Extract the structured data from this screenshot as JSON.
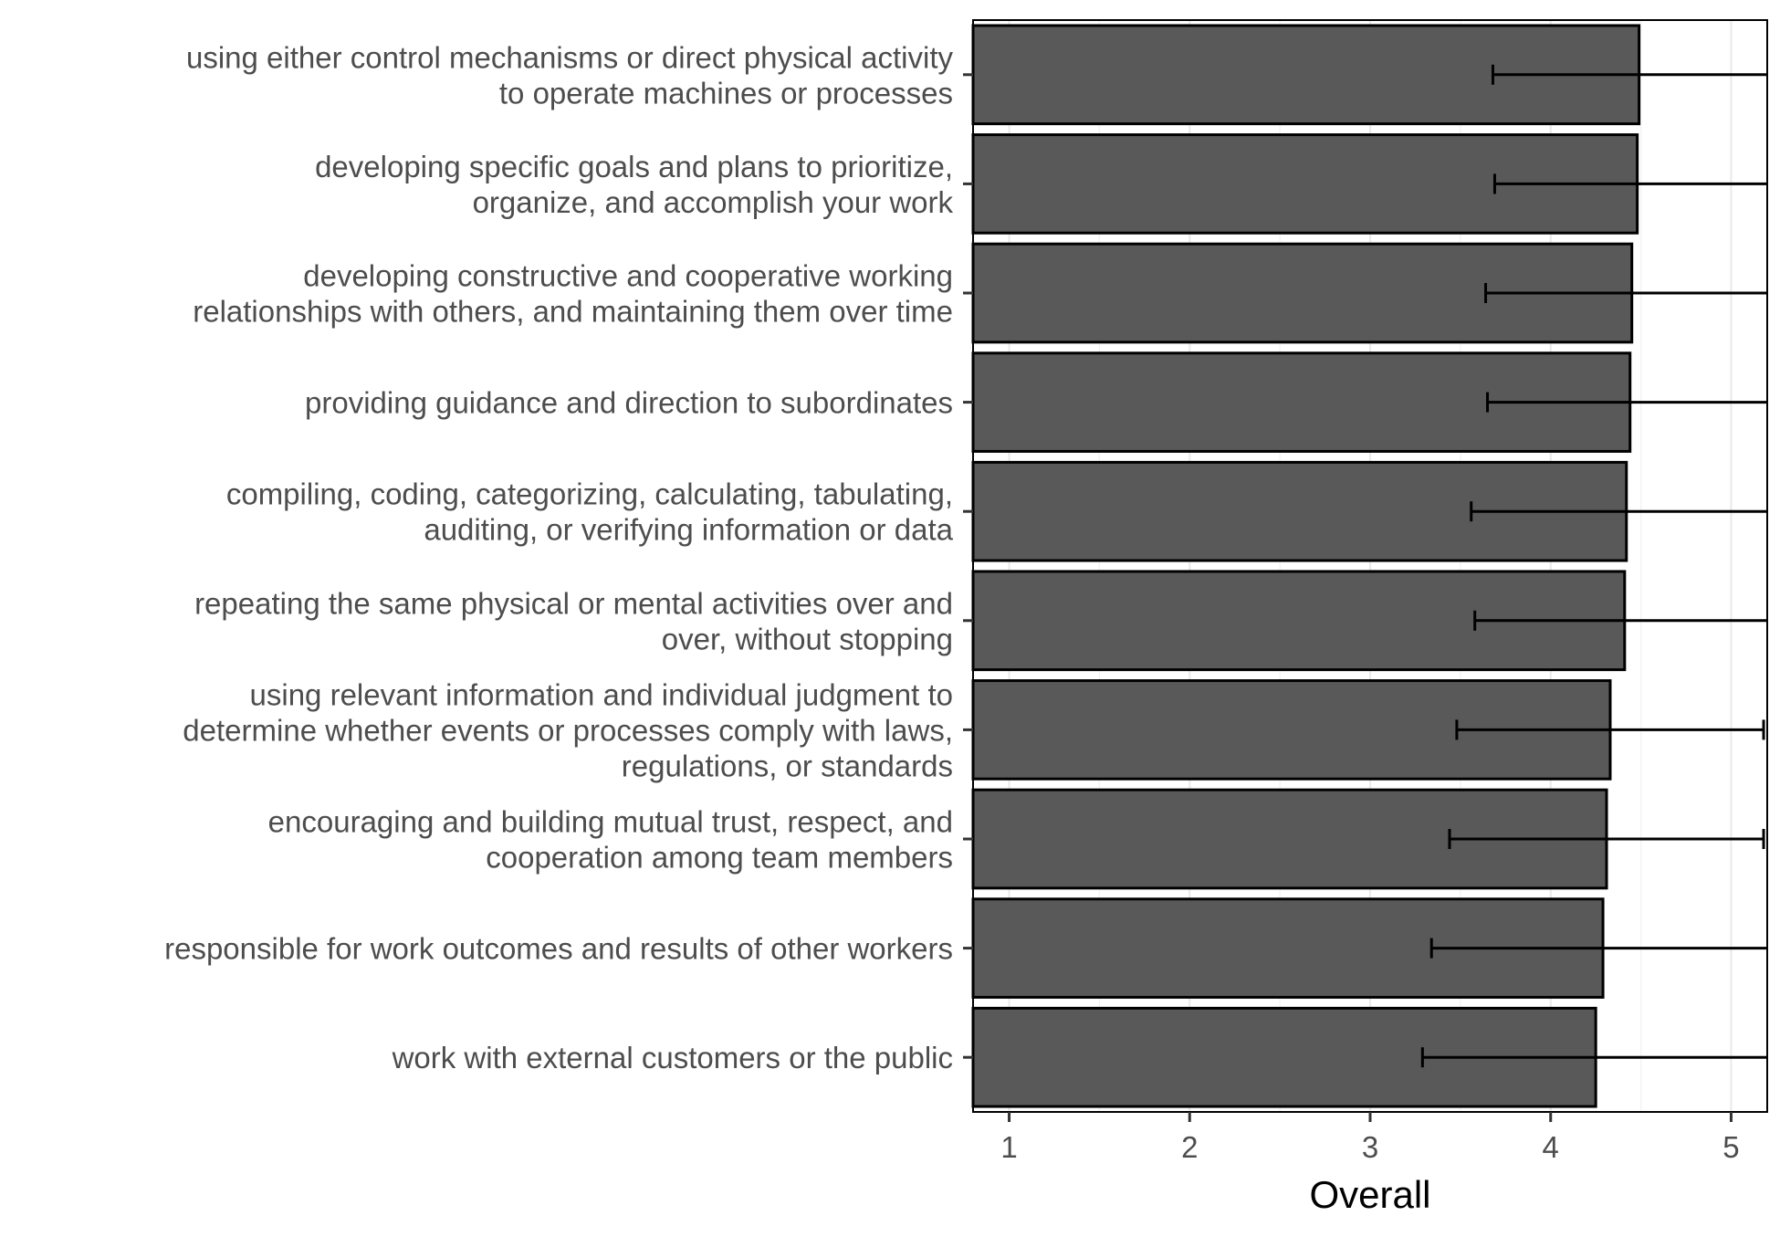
{
  "chart_data": {
    "type": "bar",
    "orientation": "horizontal",
    "categories": [
      [
        "using either control mechanisms or direct physical activity",
        "to operate machines or processes"
      ],
      [
        "developing specific goals and plans to prioritize,",
        "organize, and accomplish your work"
      ],
      [
        "developing constructive and cooperative working",
        "relationships with others, and maintaining them over time"
      ],
      [
        "providing guidance and direction to subordinates"
      ],
      [
        "compiling, coding, categorizing, calculating, tabulating,",
        "auditing, or verifying information or data"
      ],
      [
        "repeating the same physical or mental activities over and",
        "over, without stopping"
      ],
      [
        "using relevant information and individual judgment to",
        "determine whether events or processes comply with laws,",
        "regulations, or standards"
      ],
      [
        "encouraging and building mutual trust, respect, and",
        "cooperation among team members"
      ],
      [
        "responsible for work outcomes and results of other workers"
      ],
      [
        "work with external customers or the public"
      ]
    ],
    "values": [
      4.49,
      4.48,
      4.45,
      4.44,
      4.42,
      4.41,
      4.33,
      4.31,
      4.29,
      4.25
    ],
    "error_low": [
      3.68,
      3.69,
      3.64,
      3.65,
      3.56,
      3.58,
      3.48,
      3.44,
      3.34,
      3.29
    ],
    "error_high": [
      5.42,
      5.42,
      5.42,
      5.42,
      5.42,
      5.42,
      5.18,
      5.18,
      5.42,
      5.42
    ],
    "xlabel": "Overall",
    "ylabel": "",
    "xlim": [
      0.8,
      5.2
    ],
    "xticks": [
      1,
      2,
      3,
      4,
      5
    ],
    "grid": true,
    "colors": {
      "bar_fill": "#595959",
      "bar_stroke": "#000000",
      "grid_major": "#ebebeb",
      "grid_minor": "#f2f2f2",
      "text": "#4d4d4d",
      "axis_title": "#000000"
    }
  }
}
